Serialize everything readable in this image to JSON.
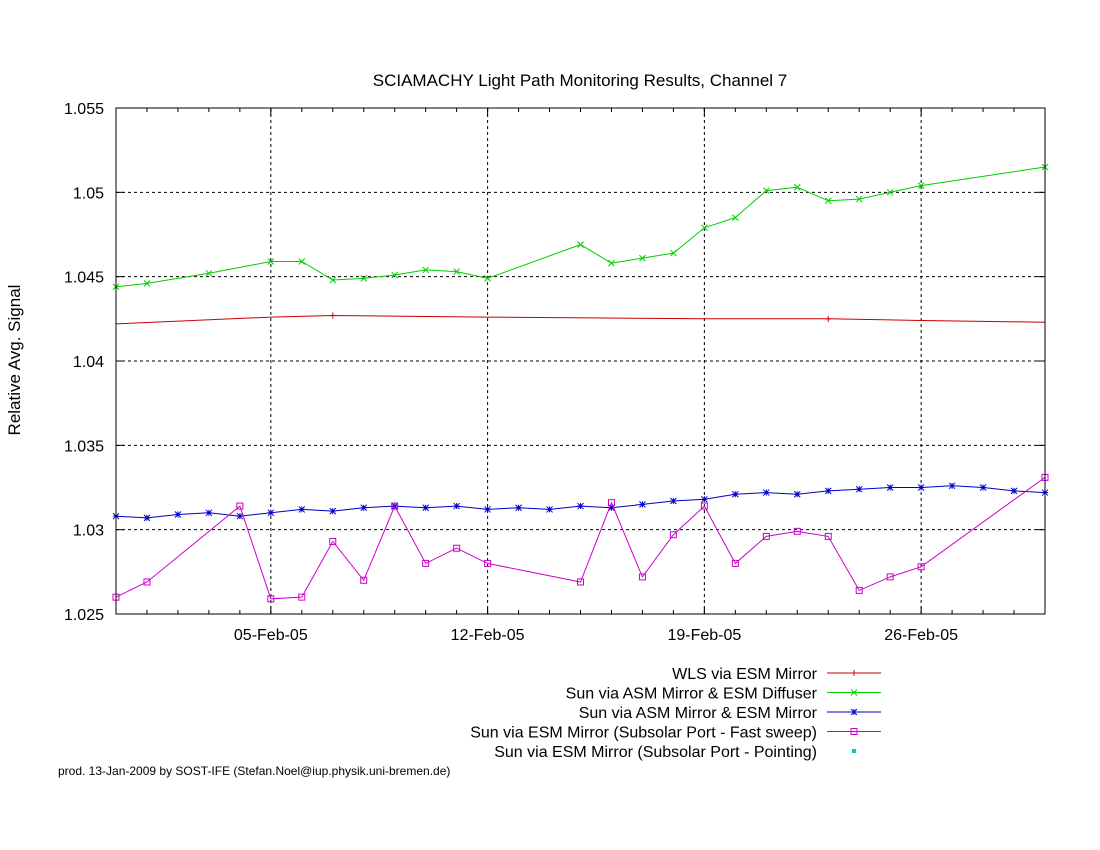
{
  "chart_data": {
    "type": "line",
    "title": "SCIAMACHY Light Path Monitoring Results, Channel 7",
    "xlabel": "",
    "ylabel": "Relative Avg. Signal",
    "x_range": [
      "2005-01-31",
      "2005-03-02"
    ],
    "ylim": [
      1.025,
      1.055
    ],
    "y_ticks": [
      1.025,
      1.03,
      1.035,
      1.04,
      1.045,
      1.05,
      1.055
    ],
    "y_tick_labels": [
      "1.025",
      "1.03",
      "1.035",
      "1.04",
      "1.045",
      "1.05",
      "1.055"
    ],
    "x_ticks": [
      "2005-02-05",
      "2005-02-12",
      "2005-02-19",
      "2005-02-26"
    ],
    "x_tick_labels": [
      "05-Feb-05",
      "12-Feb-05",
      "19-Feb-05",
      "26-Feb-05"
    ],
    "grid": true,
    "legend_position": "bottom-right, below plot",
    "series": [
      {
        "name": "WLS via ESM Mirror",
        "color": "#cc0000",
        "marker": "plus",
        "points": [
          [
            "2005-01-31",
            1.0422
          ],
          [
            "2005-02-05",
            1.0426
          ],
          [
            "2005-02-07",
            1.0427
          ],
          [
            "2005-02-12",
            1.0426
          ],
          [
            "2005-02-19",
            1.0425
          ],
          [
            "2005-02-23",
            1.0425
          ],
          [
            "2005-02-26",
            1.0424
          ],
          [
            "2005-03-02",
            1.0423
          ]
        ],
        "marker_x": [
          "2005-02-07",
          "2005-02-23"
        ]
      },
      {
        "name": "Sun via ASM Mirror & ESM Diffuser",
        "color": "#00cc00",
        "marker": "x",
        "points": [
          [
            "2005-01-31",
            1.0444
          ],
          [
            "2005-02-01",
            1.0446
          ],
          [
            "2005-02-03",
            1.0452
          ],
          [
            "2005-02-05",
            1.0459
          ],
          [
            "2005-02-06",
            1.0459
          ],
          [
            "2005-02-07",
            1.0448
          ],
          [
            "2005-02-08",
            1.0449
          ],
          [
            "2005-02-09",
            1.0451
          ],
          [
            "2005-02-10",
            1.0454
          ],
          [
            "2005-02-11",
            1.0453
          ],
          [
            "2005-02-12",
            1.0449
          ],
          [
            "2005-02-15",
            1.0469
          ],
          [
            "2005-02-16",
            1.0458
          ],
          [
            "2005-02-17",
            1.0461
          ],
          [
            "2005-02-18",
            1.0464
          ],
          [
            "2005-02-19",
            1.0479
          ],
          [
            "2005-02-20",
            1.0485
          ],
          [
            "2005-02-21",
            1.0501
          ],
          [
            "2005-02-22",
            1.0503
          ],
          [
            "2005-02-23",
            1.0495
          ],
          [
            "2005-02-24",
            1.0496
          ],
          [
            "2005-02-25",
            1.05
          ],
          [
            "2005-02-26",
            1.0504
          ],
          [
            "2005-03-02",
            1.0515
          ]
        ]
      },
      {
        "name": "Sun via ASM Mirror & ESM Mirror",
        "color": "#0000cc",
        "marker": "star",
        "points": [
          [
            "2005-01-31",
            1.0308
          ],
          [
            "2005-02-01",
            1.0307
          ],
          [
            "2005-02-02",
            1.0309
          ],
          [
            "2005-02-03",
            1.031
          ],
          [
            "2005-02-04",
            1.0308
          ],
          [
            "2005-02-05",
            1.031
          ],
          [
            "2005-02-06",
            1.0312
          ],
          [
            "2005-02-07",
            1.0311
          ],
          [
            "2005-02-08",
            1.0313
          ],
          [
            "2005-02-09",
            1.0314
          ],
          [
            "2005-02-10",
            1.0313
          ],
          [
            "2005-02-11",
            1.0314
          ],
          [
            "2005-02-12",
            1.0312
          ],
          [
            "2005-02-13",
            1.0313
          ],
          [
            "2005-02-14",
            1.0312
          ],
          [
            "2005-02-15",
            1.0314
          ],
          [
            "2005-02-16",
            1.0313
          ],
          [
            "2005-02-17",
            1.0315
          ],
          [
            "2005-02-18",
            1.0317
          ],
          [
            "2005-02-19",
            1.0318
          ],
          [
            "2005-02-20",
            1.0321
          ],
          [
            "2005-02-21",
            1.0322
          ],
          [
            "2005-02-22",
            1.0321
          ],
          [
            "2005-02-23",
            1.0323
          ],
          [
            "2005-02-24",
            1.0324
          ],
          [
            "2005-02-25",
            1.0325
          ],
          [
            "2005-02-26",
            1.0325
          ],
          [
            "2005-02-27",
            1.0326
          ],
          [
            "2005-02-28",
            1.0325
          ],
          [
            "2005-03-01",
            1.0323
          ],
          [
            "2005-03-02",
            1.0322
          ]
        ]
      },
      {
        "name": "Sun via ESM Mirror (Subsolar Port - Fast sweep)",
        "color": "#cc00cc",
        "marker": "square",
        "points": [
          [
            "2005-01-31",
            1.026
          ],
          [
            "2005-02-01",
            1.0269
          ],
          [
            "2005-02-04",
            1.0314
          ],
          [
            "2005-02-05",
            1.0259
          ],
          [
            "2005-02-06",
            1.026
          ],
          [
            "2005-02-07",
            1.0293
          ],
          [
            "2005-02-08",
            1.027
          ],
          [
            "2005-02-09",
            1.0314
          ],
          [
            "2005-02-10",
            1.028
          ],
          [
            "2005-02-11",
            1.0289
          ],
          [
            "2005-02-12",
            1.028
          ],
          [
            "2005-02-15",
            1.0269
          ],
          [
            "2005-02-16",
            1.0316
          ],
          [
            "2005-02-17",
            1.0272
          ],
          [
            "2005-02-18",
            1.0297
          ],
          [
            "2005-02-19",
            1.0314
          ],
          [
            "2005-02-20",
            1.028
          ],
          [
            "2005-02-21",
            1.0296
          ],
          [
            "2005-02-22",
            1.0299
          ],
          [
            "2005-02-23",
            1.0296
          ],
          [
            "2005-02-24",
            1.0264
          ],
          [
            "2005-02-25",
            1.0272
          ],
          [
            "2005-02-26",
            1.0278
          ],
          [
            "2005-03-02",
            1.0331
          ]
        ]
      },
      {
        "name": "Sun via ESM Mirror (Subsolar Port - Pointing)",
        "color": "#00cccc",
        "marker": "dot",
        "points": []
      }
    ]
  },
  "footer": {
    "credit": "prod. 13-Jan-2009 by SOST-IFE (Stefan.Noel@iup.physik.uni-bremen.de)"
  }
}
